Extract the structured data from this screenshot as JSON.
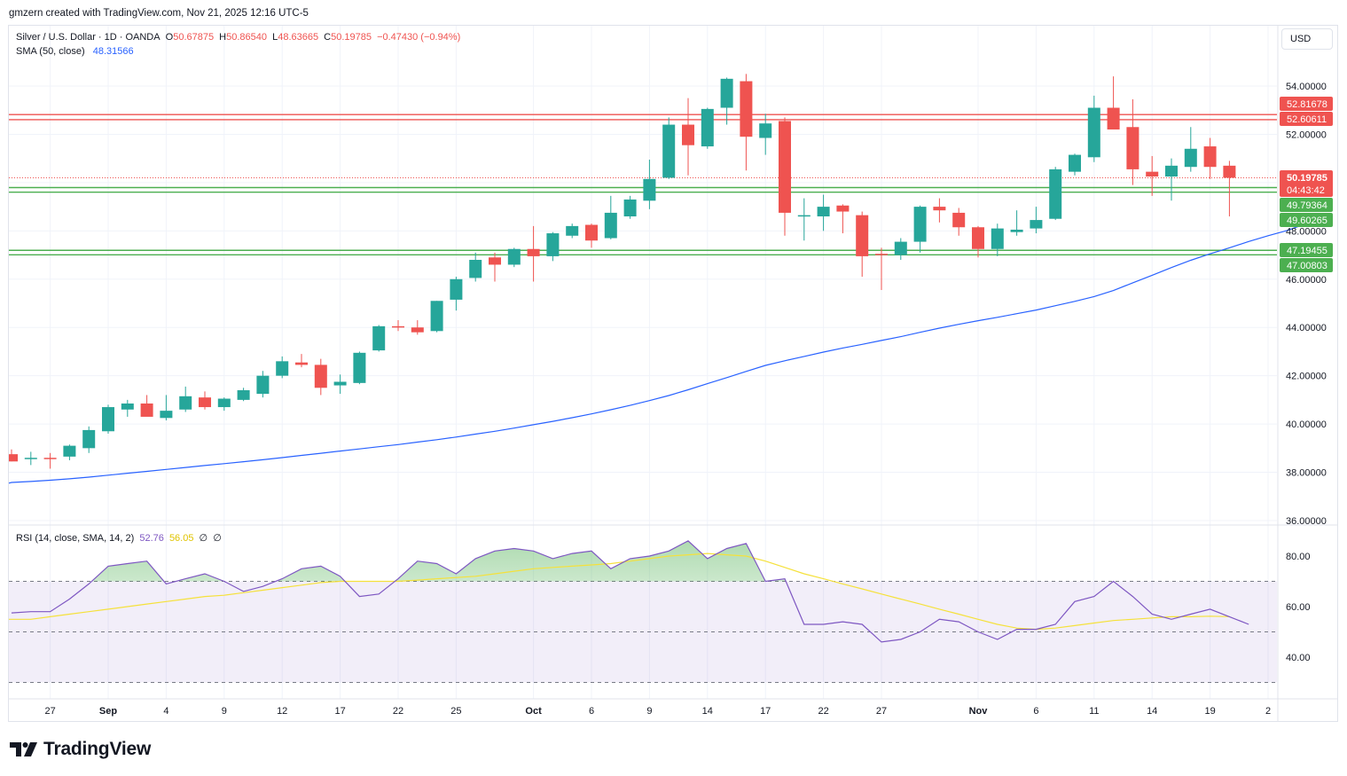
{
  "caption": "gmzern created with TradingView.com, Nov 21, 2025 12:16 UTC-5",
  "legend": {
    "symbol": "Silver / U.S. Dollar · 1D · OANDA",
    "o_label": "O",
    "o_value": "50.67875",
    "h_label": "H",
    "h_value": "50.86540",
    "l_label": "L",
    "l_value": "48.63665",
    "c_label": "C",
    "c_value": "50.19785",
    "change": "−0.47430 (−0.94%)",
    "sma_label": "SMA (50, close)",
    "sma_value": "48.31566",
    "rsi_label": "RSI (14, close, SMA, 14, 2)",
    "rsi_value": "52.76",
    "rsi_ma_value": "56.05",
    "rsi_extra1": "∅",
    "rsi_extra2": "∅"
  },
  "currency_button": "USD",
  "logo_text": "TradingView",
  "colors": {
    "up": "#26a69a",
    "down": "#ef5350",
    "sma": "#2962ff",
    "rsi": "#7e57c2",
    "rsi_ma": "#f5e13b",
    "resistance": "#ef5350",
    "support": "#4caf50",
    "grid": "#f0f3fa"
  },
  "chart_data": {
    "type": "candlestick",
    "price_axis": {
      "ticks": [
        "54.00000",
        "52.00000",
        "50.00000",
        "48.00000",
        "46.00000",
        "44.00000",
        "42.00000",
        "40.00000",
        "38.00000",
        "36.00000"
      ],
      "range": [
        36,
        55
      ]
    },
    "time_axis": {
      "ticks": [
        {
          "label": "27",
          "index": 2
        },
        {
          "label": "Sep",
          "index": 5
        },
        {
          "label": "4",
          "index": 8
        },
        {
          "label": "9",
          "index": 11
        },
        {
          "label": "12",
          "index": 14
        },
        {
          "label": "17",
          "index": 17
        },
        {
          "label": "22",
          "index": 20
        },
        {
          "label": "25",
          "index": 23
        },
        {
          "label": "Oct",
          "index": 27
        },
        {
          "label": "6",
          "index": 30
        },
        {
          "label": "9",
          "index": 33
        },
        {
          "label": "14",
          "index": 36
        },
        {
          "label": "17",
          "index": 39
        },
        {
          "label": "22",
          "index": 42
        },
        {
          "label": "27",
          "index": 45
        },
        {
          "label": "Nov",
          "index": 50
        },
        {
          "label": "6",
          "index": 53
        },
        {
          "label": "11",
          "index": 56
        },
        {
          "label": "14",
          "index": 59
        },
        {
          "label": "19",
          "index": 62
        },
        {
          "label": "2",
          "index": 65
        }
      ]
    },
    "candles": [
      {
        "o": 38.75,
        "h": 38.95,
        "l": 38.45,
        "c": 38.45
      },
      {
        "o": 38.55,
        "h": 38.85,
        "l": 38.3,
        "c": 38.6
      },
      {
        "o": 38.6,
        "h": 38.8,
        "l": 38.15,
        "c": 38.55
      },
      {
        "o": 38.65,
        "h": 39.15,
        "l": 38.5,
        "c": 39.1
      },
      {
        "o": 39.0,
        "h": 39.9,
        "l": 38.8,
        "c": 39.75
      },
      {
        "o": 39.7,
        "h": 40.8,
        "l": 39.6,
        "c": 40.7
      },
      {
        "o": 40.6,
        "h": 41.0,
        "l": 40.3,
        "c": 40.85
      },
      {
        "o": 40.85,
        "h": 41.2,
        "l": 40.4,
        "c": 40.3
      },
      {
        "o": 40.25,
        "h": 41.2,
        "l": 40.15,
        "c": 40.55
      },
      {
        "o": 40.6,
        "h": 41.55,
        "l": 40.5,
        "c": 41.15
      },
      {
        "o": 41.1,
        "h": 41.35,
        "l": 40.6,
        "c": 40.7
      },
      {
        "o": 40.7,
        "h": 41.1,
        "l": 40.55,
        "c": 41.05
      },
      {
        "o": 41.0,
        "h": 41.5,
        "l": 40.95,
        "c": 41.4
      },
      {
        "o": 41.25,
        "h": 42.2,
        "l": 41.1,
        "c": 42.0
      },
      {
        "o": 42.0,
        "h": 42.8,
        "l": 41.9,
        "c": 42.6
      },
      {
        "o": 42.55,
        "h": 42.9,
        "l": 42.35,
        "c": 42.45
      },
      {
        "o": 42.45,
        "h": 42.7,
        "l": 41.2,
        "c": 41.5
      },
      {
        "o": 41.6,
        "h": 42.05,
        "l": 41.25,
        "c": 41.75
      },
      {
        "o": 41.7,
        "h": 43.0,
        "l": 41.65,
        "c": 42.95
      },
      {
        "o": 43.05,
        "h": 44.1,
        "l": 43.0,
        "c": 44.05
      },
      {
        "o": 44.05,
        "h": 44.3,
        "l": 43.85,
        "c": 44.0
      },
      {
        "o": 44.0,
        "h": 44.3,
        "l": 43.7,
        "c": 43.8
      },
      {
        "o": 43.85,
        "h": 45.1,
        "l": 43.8,
        "c": 45.1
      },
      {
        "o": 45.15,
        "h": 46.1,
        "l": 44.7,
        "c": 46.0
      },
      {
        "o": 46.05,
        "h": 47.1,
        "l": 45.9,
        "c": 46.8
      },
      {
        "o": 46.9,
        "h": 47.1,
        "l": 45.9,
        "c": 46.6
      },
      {
        "o": 46.6,
        "h": 47.3,
        "l": 46.5,
        "c": 47.25
      },
      {
        "o": 47.25,
        "h": 48.2,
        "l": 45.9,
        "c": 46.95
      },
      {
        "o": 46.95,
        "h": 47.95,
        "l": 46.75,
        "c": 47.9
      },
      {
        "o": 47.8,
        "h": 48.3,
        "l": 47.7,
        "c": 48.2
      },
      {
        "o": 48.25,
        "h": 48.3,
        "l": 47.3,
        "c": 47.6
      },
      {
        "o": 47.7,
        "h": 49.45,
        "l": 47.65,
        "c": 48.75
      },
      {
        "o": 48.6,
        "h": 49.45,
        "l": 48.5,
        "c": 49.3
      },
      {
        "o": 49.25,
        "h": 50.95,
        "l": 48.9,
        "c": 50.15
      },
      {
        "o": 50.2,
        "h": 52.7,
        "l": 50.15,
        "c": 52.4
      },
      {
        "o": 52.4,
        "h": 53.5,
        "l": 50.3,
        "c": 51.55
      },
      {
        "o": 51.5,
        "h": 53.1,
        "l": 51.4,
        "c": 53.05
      },
      {
        "o": 53.1,
        "h": 54.35,
        "l": 52.4,
        "c": 54.3
      },
      {
        "o": 54.2,
        "h": 54.5,
        "l": 50.5,
        "c": 51.9
      },
      {
        "o": 51.85,
        "h": 52.85,
        "l": 51.15,
        "c": 52.45
      },
      {
        "o": 52.55,
        "h": 52.7,
        "l": 47.8,
        "c": 48.75
      },
      {
        "o": 48.6,
        "h": 49.35,
        "l": 47.6,
        "c": 48.65
      },
      {
        "o": 48.6,
        "h": 49.5,
        "l": 48.0,
        "c": 49.0
      },
      {
        "o": 49.05,
        "h": 49.1,
        "l": 47.9,
        "c": 48.8
      },
      {
        "o": 48.65,
        "h": 48.8,
        "l": 46.1,
        "c": 46.95
      },
      {
        "o": 47.05,
        "h": 47.3,
        "l": 45.55,
        "c": 47.0
      },
      {
        "o": 47.0,
        "h": 47.7,
        "l": 46.8,
        "c": 47.55
      },
      {
        "o": 47.55,
        "h": 49.05,
        "l": 47.1,
        "c": 49.0
      },
      {
        "o": 49.0,
        "h": 49.35,
        "l": 48.35,
        "c": 48.85
      },
      {
        "o": 48.75,
        "h": 48.95,
        "l": 47.8,
        "c": 48.15
      },
      {
        "o": 48.15,
        "h": 48.2,
        "l": 46.9,
        "c": 47.25
      },
      {
        "o": 47.25,
        "h": 48.3,
        "l": 46.95,
        "c": 48.1
      },
      {
        "o": 47.95,
        "h": 48.85,
        "l": 47.8,
        "c": 48.05
      },
      {
        "o": 48.1,
        "h": 49.0,
        "l": 47.9,
        "c": 48.45
      },
      {
        "o": 48.5,
        "h": 50.65,
        "l": 48.45,
        "c": 50.55
      },
      {
        "o": 50.45,
        "h": 51.2,
        "l": 50.3,
        "c": 51.15
      },
      {
        "o": 51.05,
        "h": 53.6,
        "l": 50.85,
        "c": 53.1
      },
      {
        "o": 53.1,
        "h": 54.4,
        "l": 52.25,
        "c": 52.2
      },
      {
        "o": 52.3,
        "h": 53.45,
        "l": 49.9,
        "c": 50.55
      },
      {
        "o": 50.45,
        "h": 51.1,
        "l": 49.45,
        "c": 50.25
      },
      {
        "o": 50.25,
        "h": 51.0,
        "l": 49.25,
        "c": 50.7
      },
      {
        "o": 50.65,
        "h": 52.3,
        "l": 50.45,
        "c": 51.4
      },
      {
        "o": 51.5,
        "h": 51.85,
        "l": 50.15,
        "c": 50.65
      },
      {
        "o": 50.7,
        "h": 50.9,
        "l": 48.6,
        "c": 50.2
      }
    ],
    "sma": [
      37.55,
      37.58,
      37.62,
      37.67,
      37.73,
      37.8,
      37.88,
      37.96,
      38.04,
      38.12,
      38.2,
      38.28,
      38.36,
      38.44,
      38.52,
      38.61,
      38.7,
      38.79,
      38.88,
      38.97,
      39.06,
      39.15,
      39.25,
      39.35,
      39.46,
      39.58,
      39.7,
      39.83,
      39.97,
      40.11,
      40.26,
      40.42,
      40.59,
      40.77,
      40.97,
      41.18,
      41.42,
      41.67,
      41.92,
      42.18,
      42.43,
      42.62,
      42.8,
      42.98,
      43.15,
      43.3,
      43.46,
      43.62,
      43.8,
      43.97,
      44.13,
      44.28,
      44.42,
      44.57,
      44.72,
      44.9,
      45.08,
      45.28,
      45.53,
      45.85,
      46.16,
      46.48,
      46.78,
      47.05,
      47.3,
      47.56,
      47.8,
      48.02,
      48.31
    ],
    "sma_start_index": -1,
    "horizontal_levels": [
      {
        "value": 52.81678,
        "label": "52.81678",
        "kind": "resistance"
      },
      {
        "value": 52.60611,
        "label": "52.60611",
        "kind": "resistance"
      },
      {
        "value": 49.79364,
        "label": "49.79364",
        "kind": "support"
      },
      {
        "value": 49.60265,
        "label": "49.60265",
        "kind": "support"
      },
      {
        "value": 47.19455,
        "label": "47.19455",
        "kind": "support"
      },
      {
        "value": 47.00803,
        "label": "47.00803",
        "kind": "support"
      }
    ],
    "last_price": {
      "value": 50.19785,
      "label": "50.19785",
      "countdown": "04:43:42"
    },
    "rsi": {
      "axis_ticks": [
        "80.00",
        "60.00",
        "40.00"
      ],
      "range": [
        25,
        90
      ],
      "overbought": 70,
      "middle": 50,
      "oversold": 30,
      "values": [
        57.5,
        58,
        58,
        63,
        69,
        76,
        77,
        78,
        69,
        71,
        73,
        70,
        66,
        68,
        71,
        75,
        76,
        72,
        64,
        65,
        71,
        78,
        77,
        73,
        79,
        82,
        83,
        82,
        79,
        81,
        82,
        75,
        79,
        80,
        82,
        86,
        79,
        83,
        85,
        70,
        71,
        53,
        53,
        54,
        53,
        46,
        47,
        50,
        55,
        54,
        50,
        47,
        51,
        51,
        53,
        62,
        64,
        70,
        64,
        57,
        55,
        57,
        59,
        56,
        53
      ],
      "ma_values": [
        55,
        55,
        55,
        56,
        57,
        58,
        59,
        60,
        61,
        62,
        63,
        64,
        64.5,
        65.5,
        66.5,
        67.5,
        68.5,
        69.5,
        70,
        70,
        70,
        70,
        70.5,
        71,
        71.5,
        72,
        73,
        74,
        75,
        75.5,
        76,
        76.5,
        77,
        78,
        79,
        80,
        80.5,
        81,
        80.5,
        80,
        78,
        75.5,
        73,
        71,
        69,
        67,
        65,
        63,
        61,
        59,
        57,
        55,
        53,
        51.5,
        51,
        51.5,
        52.5,
        53.5,
        54.5,
        55,
        55.5,
        56,
        56,
        56.2,
        56.05
      ]
    }
  }
}
